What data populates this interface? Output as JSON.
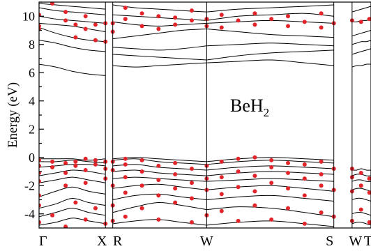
{
  "chart_data": {
    "type": "line",
    "ylabel": "Energy (eV)",
    "ylim": [
      -5.0,
      11.0
    ],
    "yticks": [
      -4,
      -2,
      0,
      2,
      4,
      6,
      8,
      10
    ],
    "ytick_labels": [
      "-4",
      "-2",
      "0",
      "2",
      "4",
      "6",
      "8",
      "10"
    ],
    "annotation": {
      "base": "BeH",
      "subscript": "2"
    },
    "k_path": [
      {
        "label": "Γ",
        "k": 0.0
      },
      {
        "label": "X",
        "k": 0.2
      },
      {
        "label": "R",
        "k": 0.222
      },
      {
        "label": "W",
        "k": 0.505
      },
      {
        "label": "S",
        "k": 0.888
      },
      {
        "label": "W",
        "k": 0.943
      },
      {
        "label": "T",
        "k": 1.0
      }
    ],
    "panel_breaks": [
      0.2,
      0.222,
      0.888,
      0.943
    ],
    "xlim": [
      0.0,
      1.0
    ],
    "series": [
      {
        "segment": 0,
        "x": [
          0.0,
          0.05,
          0.1,
          0.15,
          0.2
        ],
        "bands": [
          [
            -4.8,
            -4.6,
            -4.3,
            -4.5,
            -4.7
          ],
          [
            -4.2,
            -3.9,
            -3.6,
            -3.9,
            -4.1
          ],
          [
            -3.6,
            -3.3,
            -2.9,
            -3.2,
            -3.4
          ],
          [
            -2.8,
            -2.4,
            -2.1,
            -2.4,
            -2.6
          ],
          [
            -1.8,
            -1.6,
            -1.4,
            -1.6,
            -1.8
          ],
          [
            -1.3,
            -1.1,
            -0.9,
            -1.0,
            -1.2
          ],
          [
            -0.7,
            -0.6,
            -0.5,
            -0.5,
            -0.6
          ],
          [
            -0.3,
            -0.3,
            -0.2,
            -0.3,
            -0.4
          ],
          [
            -0.1,
            -0.1,
            -0.1,
            -0.2,
            -0.1
          ],
          [
            6.6,
            6.4,
            6.1,
            5.9,
            5.8
          ],
          [
            8.3,
            8.1,
            7.8,
            7.6,
            7.5
          ],
          [
            9.2,
            8.8,
            8.5,
            8.3,
            8.2
          ],
          [
            9.5,
            9.4,
            9.3,
            9.1,
            8.9
          ],
          [
            10.0,
            9.8,
            9.7,
            9.6,
            9.5
          ],
          [
            10.6,
            10.4,
            10.3,
            10.2,
            10.1
          ],
          [
            10.9,
            10.8,
            10.7,
            10.6,
            10.5
          ]
        ]
      },
      {
        "segment": 1,
        "x": [
          0.222,
          0.29,
          0.36,
          0.43,
          0.505
        ],
        "bands": [
          [
            -4.7,
            -4.5,
            -4.4,
            -4.6,
            -4.8
          ],
          [
            -3.9,
            -3.5,
            -3.2,
            -3.4,
            -3.7
          ],
          [
            -3.0,
            -2.7,
            -2.6,
            -2.8,
            -3.0
          ],
          [
            -2.2,
            -2.0,
            -1.9,
            -2.1,
            -2.3
          ],
          [
            -1.5,
            -1.4,
            -1.5,
            -1.6,
            -1.7
          ],
          [
            -1.0,
            -0.9,
            -1.1,
            -1.2,
            -1.3
          ],
          [
            -0.6,
            -0.5,
            -0.7,
            -0.8,
            -0.9
          ],
          [
            -0.2,
            -0.1,
            -0.3,
            -0.4,
            -0.5
          ],
          [
            -0.1,
            0.0,
            -0.1,
            -0.2,
            -0.3
          ],
          [
            6.5,
            6.4,
            6.5,
            6.6,
            6.7
          ],
          [
            7.3,
            7.2,
            7.1,
            7.0,
            6.9
          ],
          [
            7.8,
            7.7,
            7.6,
            7.7,
            7.9
          ],
          [
            8.4,
            8.6,
            8.8,
            9.0,
            9.1
          ],
          [
            9.6,
            9.4,
            9.3,
            9.4,
            9.5
          ],
          [
            10.1,
            10.0,
            9.9,
            9.8,
            9.7
          ],
          [
            10.8,
            10.6,
            10.5,
            10.4,
            10.3
          ]
        ]
      },
      {
        "segment": 2,
        "x": [
          0.505,
          0.6,
          0.7,
          0.8,
          0.888
        ],
        "bands": [
          [
            -4.8,
            -4.6,
            -4.5,
            -4.7,
            -4.9
          ],
          [
            -3.7,
            -3.5,
            -3.6,
            -3.9,
            -4.2
          ],
          [
            -3.0,
            -2.8,
            -2.7,
            -2.9,
            -3.1
          ],
          [
            -2.3,
            -2.1,
            -2.0,
            -2.2,
            -2.4
          ],
          [
            -1.7,
            -1.6,
            -1.5,
            -1.6,
            -1.7
          ],
          [
            -1.3,
            -1.1,
            -1.0,
            -1.1,
            -1.2
          ],
          [
            -0.9,
            -0.7,
            -0.6,
            -0.7,
            -0.8
          ],
          [
            -0.5,
            -0.3,
            -0.2,
            -0.3,
            -0.4
          ],
          [
            -0.3,
            -0.1,
            0.0,
            -0.1,
            -0.2
          ],
          [
            6.7,
            6.8,
            6.9,
            6.7,
            6.5
          ],
          [
            6.9,
            7.2,
            7.4,
            7.5,
            7.6
          ],
          [
            7.9,
            8.0,
            8.1,
            8.0,
            7.9
          ],
          [
            9.1,
            8.9,
            8.7,
            8.6,
            8.5
          ],
          [
            9.5,
            9.6,
            9.7,
            9.6,
            9.5
          ],
          [
            9.7,
            10.0,
            10.1,
            10.2,
            10.0
          ],
          [
            10.3,
            10.5,
            10.6,
            10.7,
            10.8
          ]
        ]
      },
      {
        "segment": 3,
        "x": [
          0.943,
          0.957,
          0.971,
          0.986,
          1.0
        ],
        "bands": [
          [
            -4.7,
            -4.6,
            -4.6,
            -4.7,
            -4.8
          ],
          [
            -4.0,
            -3.9,
            -3.9,
            -4.0,
            -4.1
          ],
          [
            -3.0,
            -2.9,
            -2.9,
            -3.0,
            -3.1
          ],
          [
            -2.3,
            -2.2,
            -2.2,
            -2.3,
            -2.4
          ],
          [
            -1.7,
            -1.6,
            -1.6,
            -1.7,
            -1.7
          ],
          [
            -1.3,
            -1.2,
            -1.2,
            -1.3,
            -1.3
          ],
          [
            -0.9,
            -0.9,
            -0.8,
            -0.9,
            -0.9
          ],
          [
            6.4,
            6.5,
            6.5,
            6.6,
            6.6
          ],
          [
            7.3,
            7.4,
            7.5,
            7.6,
            7.7
          ],
          [
            8.0,
            8.1,
            8.2,
            8.2,
            8.3
          ],
          [
            8.6,
            8.7,
            8.8,
            8.9,
            9.0
          ],
          [
            9.6,
            9.6,
            9.7,
            9.7,
            9.8
          ],
          [
            10.3,
            10.4,
            10.5,
            10.6,
            10.7
          ]
        ]
      }
    ],
    "markers": [
      {
        "x": 0.0,
        "y": -4.6
      },
      {
        "x": 0.0,
        "y": -3.4
      },
      {
        "x": 0.0,
        "y": -2.7
      },
      {
        "x": 0.0,
        "y": -1.7
      },
      {
        "x": 0.0,
        "y": -1.1
      },
      {
        "x": 0.0,
        "y": -0.6
      },
      {
        "x": 0.0,
        "y": -0.2
      },
      {
        "x": 0.0,
        "y": 9.1
      },
      {
        "x": 0.0,
        "y": 9.3
      },
      {
        "x": 0.0,
        "y": 10.1
      },
      {
        "x": 0.04,
        "y": -4.1
      },
      {
        "x": 0.04,
        "y": -0.7
      },
      {
        "x": 0.04,
        "y": -0.3
      },
      {
        "x": 0.04,
        "y": 10.9
      },
      {
        "x": 0.08,
        "y": -4.9
      },
      {
        "x": 0.08,
        "y": -2.0
      },
      {
        "x": 0.08,
        "y": -1.1
      },
      {
        "x": 0.08,
        "y": -0.4
      },
      {
        "x": 0.08,
        "y": 9.7
      },
      {
        "x": 0.08,
        "y": 10.3
      },
      {
        "x": 0.11,
        "y": -3.2
      },
      {
        "x": 0.11,
        "y": -0.6
      },
      {
        "x": 0.11,
        "y": -0.3
      },
      {
        "x": 0.11,
        "y": 8.5
      },
      {
        "x": 0.11,
        "y": 9.4
      },
      {
        "x": 0.14,
        "y": -4.4
      },
      {
        "x": 0.14,
        "y": -1.8
      },
      {
        "x": 0.14,
        "y": -0.9
      },
      {
        "x": 0.14,
        "y": -0.1
      },
      {
        "x": 0.14,
        "y": 9.1
      },
      {
        "x": 0.14,
        "y": 10.0
      },
      {
        "x": 0.17,
        "y": -3.6
      },
      {
        "x": 0.17,
        "y": -0.5
      },
      {
        "x": 0.17,
        "y": -0.2
      },
      {
        "x": 0.17,
        "y": 8.3
      },
      {
        "x": 0.17,
        "y": 9.4
      },
      {
        "x": 0.2,
        "y": -4.7
      },
      {
        "x": 0.2,
        "y": -1.5
      },
      {
        "x": 0.2,
        "y": -0.8
      },
      {
        "x": 0.2,
        "y": -0.3
      },
      {
        "x": 0.2,
        "y": 8.2
      },
      {
        "x": 0.2,
        "y": 9.5
      },
      {
        "x": 0.222,
        "y": -4.5
      },
      {
        "x": 0.222,
        "y": -3.4
      },
      {
        "x": 0.222,
        "y": -2.0
      },
      {
        "x": 0.222,
        "y": -0.9
      },
      {
        "x": 0.222,
        "y": -0.3
      },
      {
        "x": 0.222,
        "y": 8.9
      },
      {
        "x": 0.222,
        "y": 9.5
      },
      {
        "x": 0.26,
        "y": -4.2
      },
      {
        "x": 0.26,
        "y": -2.5
      },
      {
        "x": 0.26,
        "y": -1.4
      },
      {
        "x": 0.26,
        "y": -0.5
      },
      {
        "x": 0.26,
        "y": -0.1
      },
      {
        "x": 0.26,
        "y": 9.8
      },
      {
        "x": 0.26,
        "y": 10.6
      },
      {
        "x": 0.31,
        "y": -3.6
      },
      {
        "x": 0.31,
        "y": -2.0
      },
      {
        "x": 0.31,
        "y": -1.0
      },
      {
        "x": 0.31,
        "y": -0.2
      },
      {
        "x": 0.31,
        "y": 9.3
      },
      {
        "x": 0.31,
        "y": 10.2
      },
      {
        "x": 0.36,
        "y": -4.4
      },
      {
        "x": 0.36,
        "y": -2.7
      },
      {
        "x": 0.36,
        "y": -1.6
      },
      {
        "x": 0.36,
        "y": -0.6
      },
      {
        "x": 0.36,
        "y": 9.1
      },
      {
        "x": 0.36,
        "y": 10.0
      },
      {
        "x": 0.41,
        "y": -3.2
      },
      {
        "x": 0.41,
        "y": -2.2
      },
      {
        "x": 0.41,
        "y": -1.2
      },
      {
        "x": 0.41,
        "y": -0.4
      },
      {
        "x": 0.41,
        "y": 9.4
      },
      {
        "x": 0.41,
        "y": 9.9
      },
      {
        "x": 0.46,
        "y": -4.6
      },
      {
        "x": 0.46,
        "y": -2.9
      },
      {
        "x": 0.46,
        "y": -1.8
      },
      {
        "x": 0.46,
        "y": -0.8
      },
      {
        "x": 0.46,
        "y": 9.7
      },
      {
        "x": 0.46,
        "y": 10.4
      },
      {
        "x": 0.505,
        "y": -4.1
      },
      {
        "x": 0.505,
        "y": -2.3
      },
      {
        "x": 0.505,
        "y": -1.5
      },
      {
        "x": 0.505,
        "y": -0.6
      },
      {
        "x": 0.505,
        "y": 9.3
      },
      {
        "x": 0.505,
        "y": 9.8
      },
      {
        "x": 0.55,
        "y": -3.8
      },
      {
        "x": 0.55,
        "y": -2.6
      },
      {
        "x": 0.55,
        "y": -1.4
      },
      {
        "x": 0.55,
        "y": -0.3
      },
      {
        "x": 0.55,
        "y": 9.2
      },
      {
        "x": 0.55,
        "y": 10.1
      },
      {
        "x": 0.6,
        "y": -4.5
      },
      {
        "x": 0.6,
        "y": -2.1
      },
      {
        "x": 0.6,
        "y": -1.0
      },
      {
        "x": 0.6,
        "y": -0.1
      },
      {
        "x": 0.6,
        "y": 9.7
      },
      {
        "x": 0.65,
        "y": -3.4
      },
      {
        "x": 0.65,
        "y": -2.4
      },
      {
        "x": 0.65,
        "y": -1.3
      },
      {
        "x": 0.65,
        "y": 0.0
      },
      {
        "x": 0.65,
        "y": 9.4
      },
      {
        "x": 0.65,
        "y": 10.2
      },
      {
        "x": 0.7,
        "y": -4.4
      },
      {
        "x": 0.7,
        "y": -1.8
      },
      {
        "x": 0.7,
        "y": -0.7
      },
      {
        "x": 0.7,
        "y": -0.2
      },
      {
        "x": 0.7,
        "y": 9.8
      },
      {
        "x": 0.75,
        "y": -3.6
      },
      {
        "x": 0.75,
        "y": -2.2
      },
      {
        "x": 0.75,
        "y": -1.1
      },
      {
        "x": 0.75,
        "y": -0.4
      },
      {
        "x": 0.75,
        "y": 9.3
      },
      {
        "x": 0.75,
        "y": 10.0
      },
      {
        "x": 0.8,
        "y": -4.7
      },
      {
        "x": 0.8,
        "y": -2.7
      },
      {
        "x": 0.8,
        "y": -1.5
      },
      {
        "x": 0.8,
        "y": -0.5
      },
      {
        "x": 0.8,
        "y": 9.6
      },
      {
        "x": 0.85,
        "y": -3.9
      },
      {
        "x": 0.85,
        "y": -2.0
      },
      {
        "x": 0.85,
        "y": -1.2
      },
      {
        "x": 0.85,
        "y": -0.3
      },
      {
        "x": 0.85,
        "y": 9.2
      },
      {
        "x": 0.85,
        "y": 10.2
      },
      {
        "x": 0.888,
        "y": -4.2
      },
      {
        "x": 0.888,
        "y": -2.3
      },
      {
        "x": 0.888,
        "y": -0.8
      },
      {
        "x": 0.888,
        "y": 9.5
      },
      {
        "x": 0.943,
        "y": -4.5
      },
      {
        "x": 0.943,
        "y": -2.4
      },
      {
        "x": 0.943,
        "y": -1.4
      },
      {
        "x": 0.943,
        "y": -0.8
      },
      {
        "x": 0.943,
        "y": 9.7
      },
      {
        "x": 0.97,
        "y": -3.7
      },
      {
        "x": 0.97,
        "y": -2.0
      },
      {
        "x": 0.97,
        "y": -1.1
      },
      {
        "x": 0.97,
        "y": 9.6
      },
      {
        "x": 0.995,
        "y": -4.6
      },
      {
        "x": 0.995,
        "y": -2.5
      },
      {
        "x": 0.995,
        "y": -1.5
      },
      {
        "x": 0.995,
        "y": 9.8
      }
    ]
  }
}
